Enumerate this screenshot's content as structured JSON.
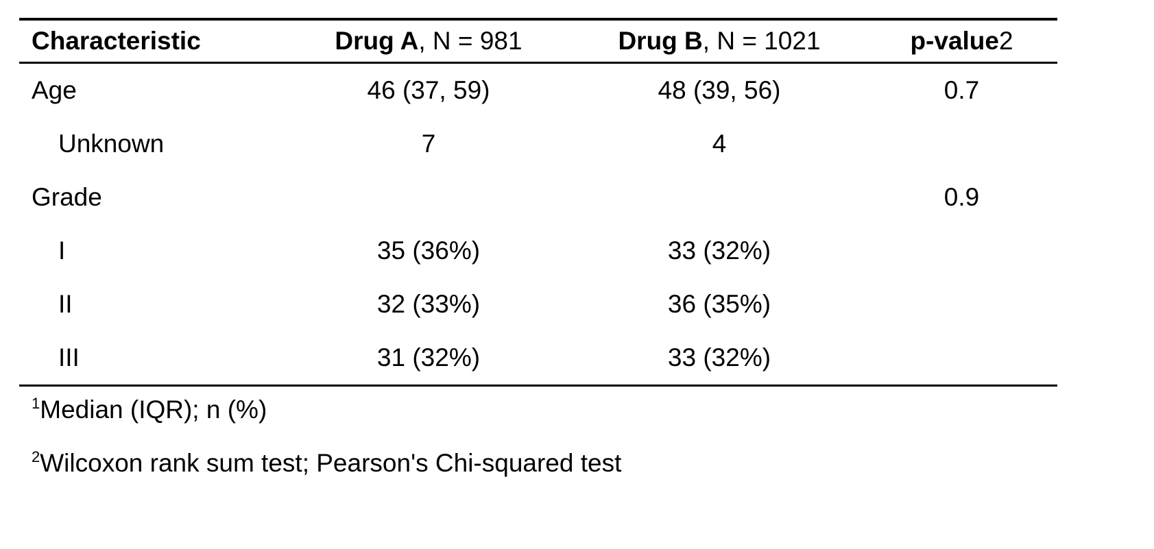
{
  "table": {
    "header": {
      "characteristic": "Characteristic",
      "drug_a_name": "Drug A",
      "drug_a_n": ", N = 981",
      "drug_b_name": "Drug B",
      "drug_b_n": ", N = 1021",
      "pvalue_label": "p-value",
      "pvalue_mark": "2"
    },
    "rows": [
      {
        "characteristic": "Age",
        "drug_a": "46 (37, 59)",
        "drug_b": "48 (39, 56)",
        "p_value": "0.7"
      },
      {
        "characteristic": "Unknown",
        "drug_a": "7",
        "drug_b": "4",
        "p_value": ""
      },
      {
        "characteristic": "Grade",
        "drug_a": "",
        "drug_b": "",
        "p_value": "0.9"
      },
      {
        "characteristic": "I",
        "drug_a": "35 (36%)",
        "drug_b": "33 (32%)",
        "p_value": ""
      },
      {
        "characteristic": "II",
        "drug_a": "32 (33%)",
        "drug_b": "36 (35%)",
        "p_value": ""
      },
      {
        "characteristic": "III",
        "drug_a": "31 (32%)",
        "drug_b": "33 (32%)",
        "p_value": ""
      }
    ]
  },
  "footnotes": [
    {
      "mark": "1",
      "text": "Median (IQR); n (%)"
    },
    {
      "mark": "2",
      "text": "Wilcoxon rank sum test; Pearson's Chi-squared test"
    }
  ]
}
